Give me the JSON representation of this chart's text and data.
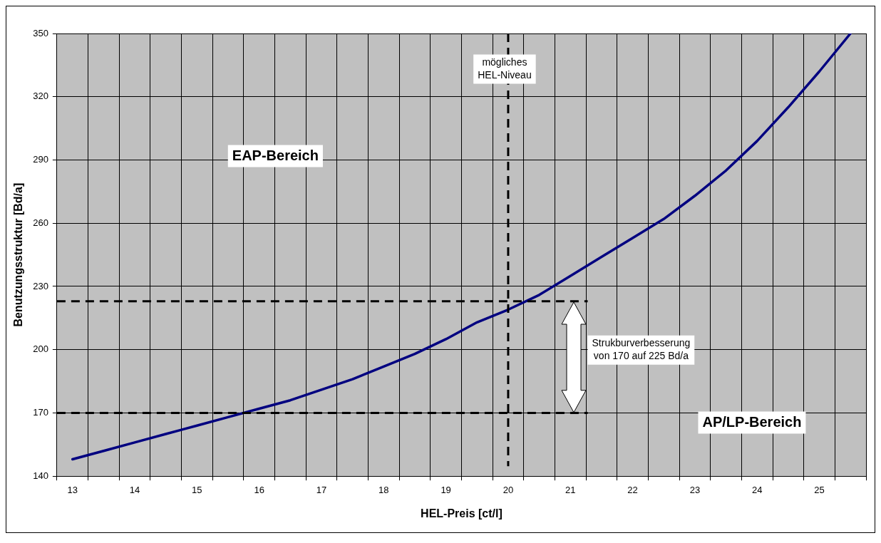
{
  "chart_data": {
    "type": "line",
    "xlabel": "HEL-Preis [ct/l]",
    "ylabel": "Benutzungsstruktur [Bd/a]",
    "categories": [
      "13",
      null,
      "14",
      null,
      "15",
      null,
      "16",
      null,
      "17",
      null,
      "18",
      null,
      "19",
      null,
      "20",
      null,
      "21",
      null,
      "22",
      null,
      "23",
      null,
      "24",
      null,
      "25",
      null
    ],
    "series": [
      {
        "color": "#000080",
        "values": [
          148,
          152,
          156,
          160,
          164,
          168,
          172,
          176,
          181,
          186,
          192,
          198,
          205,
          213,
          219,
          226,
          235,
          244,
          253,
          262,
          273,
          285,
          299,
          315,
          332,
          350
        ]
      }
    ],
    "ylim": [
      140,
      350
    ],
    "yticks": [
      140,
      170,
      200,
      230,
      260,
      290,
      320,
      350
    ],
    "grid": true,
    "legend": false,
    "marker": "none",
    "line_style": "solid",
    "ref_lines": [
      {
        "axis": "x",
        "value": "20",
        "label": "mögliches\nHEL-Niveau",
        "color": "#000000",
        "line_style": "dashed"
      },
      {
        "axis": "y",
        "value": 170,
        "color": "#000000",
        "line_style": "dashed"
      },
      {
        "axis": "y",
        "value": 223,
        "color": "#000000",
        "line_style": "dashed"
      }
    ],
    "annotations": [
      "EAP-Bereich",
      "AP/LP-Bereich",
      "Strukburverbesserung\nvon 170 auf 225 Bd/a"
    ]
  }
}
